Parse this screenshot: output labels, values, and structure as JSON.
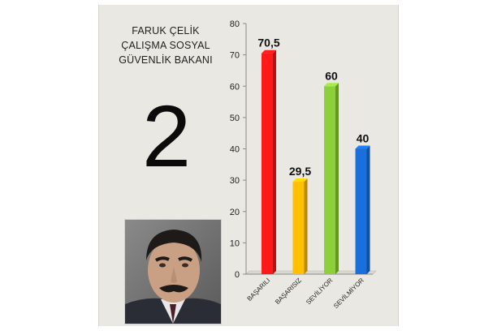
{
  "header": {
    "lines": [
      "FARUK ÇELİK",
      "ÇALIŞMA SOSYAL",
      "GÜVENLİK BAKANI"
    ]
  },
  "rank": "2",
  "photo": {
    "icon": "portrait-photo"
  },
  "chart_data": {
    "type": "bar",
    "categories": [
      "BAŞARILI",
      "BAŞARISIZ",
      "SEVİLİYOR",
      "SEVİLMİYOR"
    ],
    "values": [
      70.5,
      29.5,
      60,
      40
    ],
    "data_labels": [
      "70,5",
      "29,5",
      "60",
      "40"
    ],
    "colors": [
      "#ff1a1a",
      "#ffc000",
      "#8dd13a",
      "#1a6fdc"
    ],
    "ylim": [
      0,
      80
    ],
    "yticks": [
      0,
      10,
      20,
      30,
      40,
      50,
      60,
      70,
      80
    ],
    "grid": false,
    "title": "",
    "xlabel": "",
    "ylabel": ""
  }
}
